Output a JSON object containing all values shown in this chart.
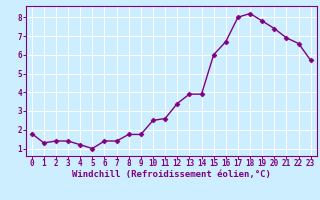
{
  "x": [
    0,
    1,
    2,
    3,
    4,
    5,
    6,
    7,
    8,
    9,
    10,
    11,
    12,
    13,
    14,
    15,
    16,
    17,
    18,
    19,
    20,
    21,
    22,
    23
  ],
  "y": [
    1.8,
    1.3,
    1.4,
    1.4,
    1.2,
    1.0,
    1.4,
    1.4,
    1.75,
    1.75,
    2.5,
    2.6,
    3.4,
    3.9,
    3.9,
    6.0,
    6.7,
    8.0,
    8.2,
    7.8,
    7.4,
    6.9,
    6.6,
    5.7
  ],
  "line_color": "#800080",
  "marker": "D",
  "marker_size": 2.5,
  "bg_color": "#cceeff",
  "grid_color": "#ffffff",
  "xlabel": "Windchill (Refroidissement éolien,°C)",
  "xlabel_color": "#800080",
  "tick_color": "#800080",
  "ylim": [
    0.6,
    8.6
  ],
  "xlim": [
    -0.5,
    23.5
  ],
  "yticks": [
    1,
    2,
    3,
    4,
    5,
    6,
    7,
    8
  ],
  "xticks": [
    0,
    1,
    2,
    3,
    4,
    5,
    6,
    7,
    8,
    9,
    10,
    11,
    12,
    13,
    14,
    15,
    16,
    17,
    18,
    19,
    20,
    21,
    22,
    23
  ],
  "tick_fontsize": 5.5,
  "xlabel_fontsize": 6.5,
  "line_width": 1.0
}
